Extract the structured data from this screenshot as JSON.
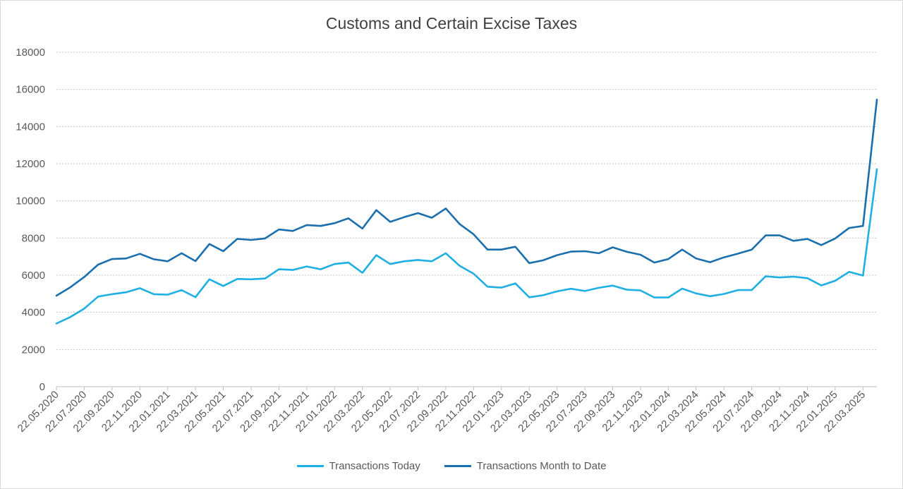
{
  "chart_data": {
    "type": "line",
    "title": "Customs and Certain Excise Taxes",
    "ylim": [
      0,
      18000
    ],
    "yticks": [
      0,
      2000,
      4000,
      6000,
      8000,
      10000,
      12000,
      14000,
      16000,
      18000
    ],
    "grid": "horizontal-dotted",
    "legend_position": "bottom",
    "x_tick_labels": [
      "22.05.2020",
      "22.07.2020",
      "22.09.2020",
      "22.11.2020",
      "22.01.2021",
      "22.03.2021",
      "22.05.2021",
      "22.07.2021",
      "22.09.2021",
      "22.11.2021",
      "22.01.2022",
      "22.03.2022",
      "22.05.2022",
      "22.07.2022",
      "22.09.2022",
      "22.11.2022",
      "22.01.2023",
      "22.03.2023",
      "22.05.2023",
      "22.07.2023",
      "22.09.2023",
      "22.11.2023",
      "22.01.2024",
      "22.03.2024",
      "22.05.2024",
      "22.07.2024",
      "22.09.2024",
      "22.11.2024",
      "22.01.2025",
      "22.03.2025"
    ],
    "points_per_tick": 2,
    "series": [
      {
        "name": "Transactions Today",
        "color": "#1fb0e3",
        "values": [
          3400,
          3750,
          4200,
          4850,
          4980,
          5080,
          5300,
          4980,
          4950,
          5200,
          4820,
          5780,
          5420,
          5800,
          5780,
          5820,
          6320,
          6280,
          6470,
          6320,
          6600,
          6680,
          6130,
          7080,
          6600,
          6750,
          6820,
          6750,
          7180,
          6500,
          6080,
          5380,
          5330,
          5560,
          4810,
          4920,
          5130,
          5270,
          5150,
          5320,
          5440,
          5220,
          5180,
          4800,
          4800,
          5280,
          5020,
          4870,
          4990,
          5200,
          5200,
          5940,
          5880,
          5920,
          5840,
          5450,
          5700,
          6180,
          5980,
          11700
        ]
      },
      {
        "name": "Transactions Month to Date",
        "color": "#1b6fad",
        "values": [
          4900,
          5350,
          5900,
          6570,
          6870,
          6900,
          7150,
          6860,
          6750,
          7180,
          6760,
          7680,
          7290,
          7950,
          7900,
          7980,
          8460,
          8380,
          8700,
          8650,
          8800,
          9060,
          8510,
          9500,
          8870,
          9120,
          9340,
          9090,
          9590,
          8750,
          8200,
          7380,
          7380,
          7530,
          6650,
          6800,
          7080,
          7270,
          7290,
          7180,
          7500,
          7260,
          7100,
          6680,
          6870,
          7380,
          6900,
          6700,
          6960,
          7160,
          7380,
          8140,
          8140,
          7850,
          7950,
          7620,
          7980,
          8540,
          8650,
          15450
        ]
      }
    ]
  }
}
